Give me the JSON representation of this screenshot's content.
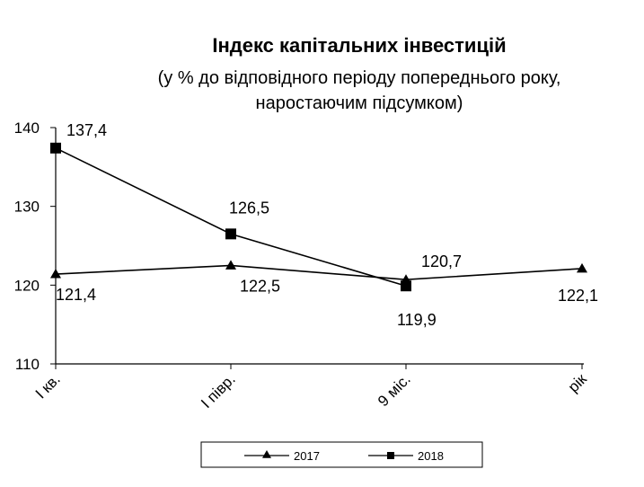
{
  "chart_data": {
    "type": "line",
    "title": "Індекс капітальних інвестицій",
    "subtitle_lines": [
      "(у % до відповідного періоду попереднього  року,",
      "наростаючим підсумком)"
    ],
    "categories": [
      "І кв.",
      "І півр.",
      "9 міс.",
      "рік"
    ],
    "series": [
      {
        "name": "2017",
        "marker": "triangle",
        "values": [
          121.4,
          122.5,
          120.7,
          122.1
        ]
      },
      {
        "name": "2018",
        "marker": "square",
        "values": [
          137.4,
          126.5,
          119.9,
          null
        ]
      }
    ],
    "ylim": [
      110,
      140
    ],
    "yticks": [
      110,
      120,
      130,
      140
    ],
    "xlabel": "",
    "ylabel": "",
    "grid": false,
    "legend": "bottom-center"
  }
}
